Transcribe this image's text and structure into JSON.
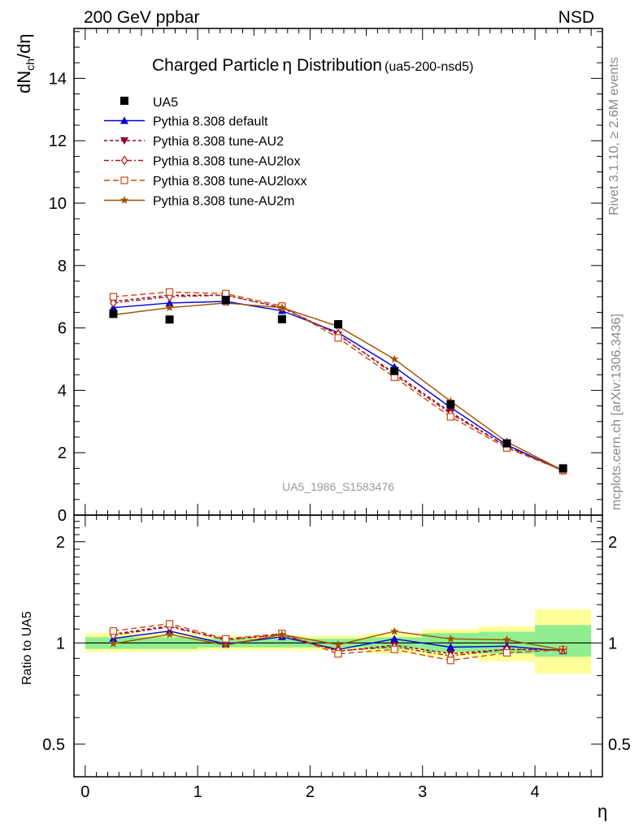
{
  "header": {
    "left": "200 GeV ppbar",
    "right": "NSD"
  },
  "title": {
    "main": "Charged Particle",
    "eta": "η",
    "rest": " Distribution",
    "tag": "(ua5-200-nsd5)"
  },
  "side_labels": {
    "rivet": "Rivet 3.1.10, ≥ 2.6M events",
    "mcplots": "mcplots.cern.ch [arXiv:1306.3436]"
  },
  "analysis_id": "UA5_1986_S1583476",
  "colors": {
    "default": "#0000dd",
    "au2": "#8b0030",
    "au2lox": "#b01515",
    "au2loxx": "#c84a10",
    "au2m": "#a05000",
    "band_green": "#90ee90",
    "band_yellow": "#ffff99"
  },
  "chart_data": {
    "type": "line",
    "xlabel": "η",
    "ylabel_main": "dN_ch/dη",
    "ylabel_ratio": "Ratio to UA5",
    "xlim": [
      -0.1,
      4.6
    ],
    "ylim_main": [
      0,
      15.6
    ],
    "ylim_ratio": [
      0.4,
      2.4
    ],
    "x_ticks": [
      "0",
      "1",
      "2",
      "3",
      "4"
    ],
    "y_ticks_main": [
      "0",
      "2",
      "4",
      "6",
      "8",
      "10",
      "12",
      "14"
    ],
    "y_ticks_ratio": [
      "0.5",
      "1",
      "2"
    ],
    "legend_position": "top-left",
    "bins": [
      [
        0,
        0.5
      ],
      [
        0.5,
        1.0
      ],
      [
        1.0,
        1.5
      ],
      [
        1.5,
        2.0
      ],
      [
        2.0,
        2.5
      ],
      [
        2.5,
        3.0
      ],
      [
        3.0,
        3.5
      ],
      [
        3.5,
        4.0
      ],
      [
        4.0,
        4.5
      ]
    ],
    "x": [
      0.25,
      0.75,
      1.25,
      1.75,
      2.25,
      2.75,
      3.25,
      3.75,
      4.25
    ],
    "data": {
      "name": "UA5",
      "y": [
        6.45,
        6.27,
        6.9,
        6.28,
        6.12,
        4.62,
        3.55,
        2.3,
        1.5
      ]
    },
    "bands": {
      "green": [
        [
          0.96,
          1.04
        ],
        [
          0.96,
          1.04
        ],
        [
          0.97,
          1.03
        ],
        [
          0.97,
          1.03
        ],
        [
          0.97,
          1.03
        ],
        [
          0.96,
          1.04
        ],
        [
          0.94,
          1.07
        ],
        [
          0.93,
          1.08
        ],
        [
          0.91,
          1.13
        ]
      ],
      "yellow": [
        [
          0.94,
          1.07
        ],
        [
          0.94,
          1.07
        ],
        [
          0.95,
          1.05
        ],
        [
          0.95,
          1.05
        ],
        [
          0.95,
          1.05
        ],
        [
          0.93,
          1.07
        ],
        [
          0.91,
          1.1
        ],
        [
          0.88,
          1.12
        ],
        [
          0.81,
          1.26
        ]
      ]
    },
    "series": [
      {
        "name": "Pythia 8.308 default",
        "key": "default",
        "marker": "triangle",
        "dash": "",
        "y": [
          6.65,
          6.8,
          6.85,
          6.55,
          5.85,
          4.75,
          3.45,
          2.25,
          1.42
        ]
      },
      {
        "name": "Pythia 8.308 tune-AU2",
        "key": "au2",
        "marker": "triangle-down",
        "dash": "4,3",
        "y": [
          6.85,
          7.05,
          7.05,
          6.65,
          5.78,
          4.55,
          3.3,
          2.2,
          1.43
        ]
      },
      {
        "name": "Pythia 8.308 tune-AU2lox",
        "key": "au2lox",
        "marker": "diamond",
        "dash": "6,3,2,3",
        "y": [
          6.8,
          7.0,
          7.05,
          6.65,
          5.8,
          4.5,
          3.25,
          2.2,
          1.43
        ]
      },
      {
        "name": "Pythia 8.308 tune-AU2loxx",
        "key": "au2loxx",
        "marker": "square",
        "dash": "7,4",
        "y": [
          7.0,
          7.15,
          7.1,
          6.7,
          5.68,
          4.42,
          3.15,
          2.15,
          1.43
        ]
      },
      {
        "name": "Pythia 8.308 tune-AU2m",
        "key": "au2m",
        "marker": "star",
        "dash": "",
        "y": [
          6.42,
          6.65,
          6.8,
          6.65,
          6.05,
          5.0,
          3.65,
          2.35,
          1.43
        ]
      }
    ]
  }
}
